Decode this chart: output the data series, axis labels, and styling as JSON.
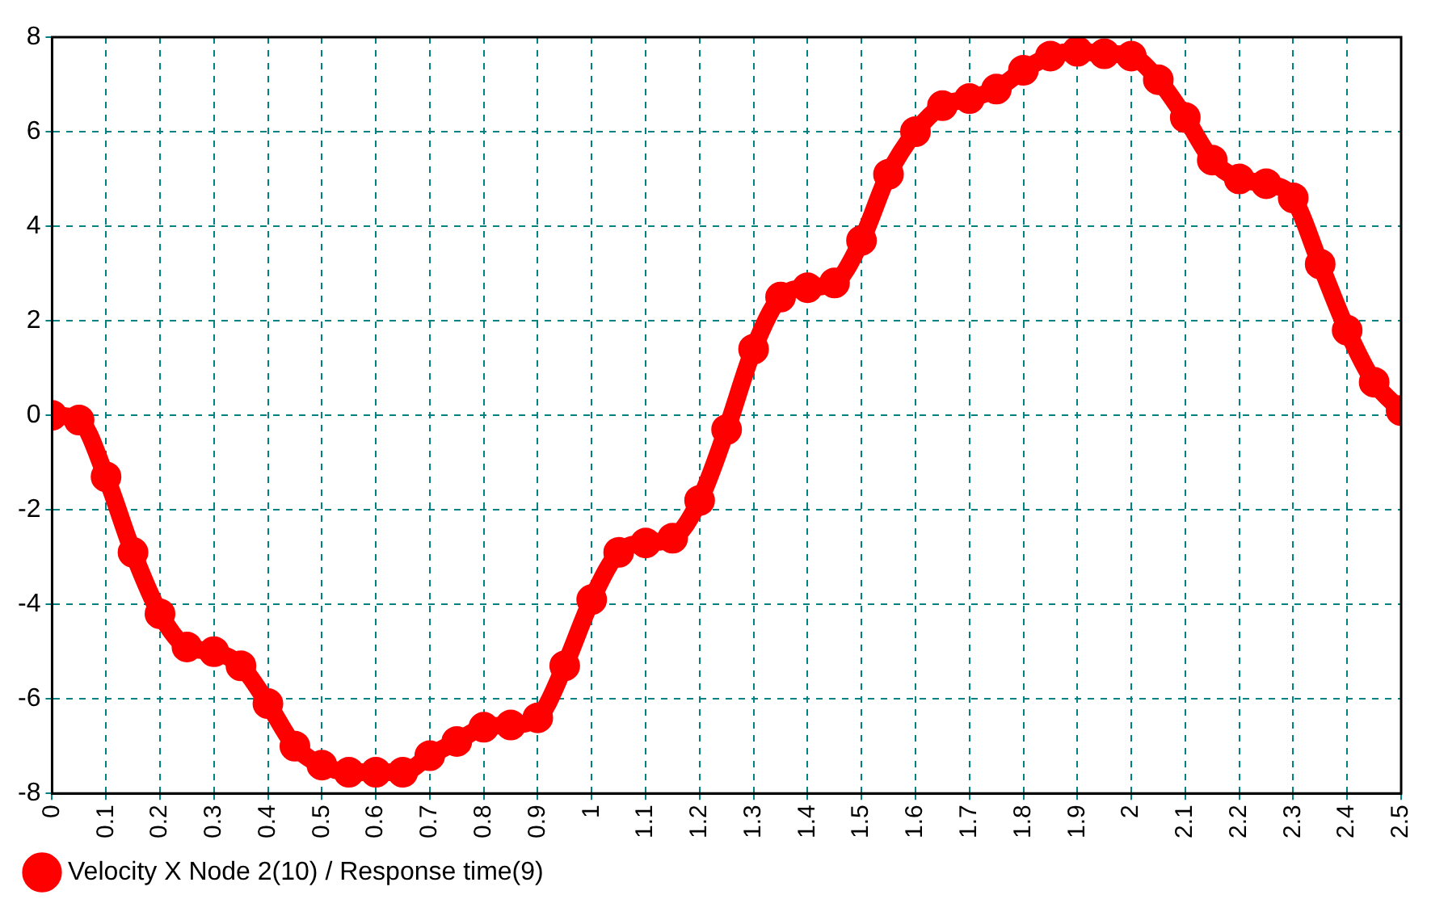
{
  "chart_data": {
    "type": "line",
    "x": [
      0,
      0.05,
      0.1,
      0.15,
      0.2,
      0.25,
      0.3,
      0.35,
      0.4,
      0.45,
      0.5,
      0.55,
      0.6,
      0.65,
      0.7,
      0.75,
      0.8,
      0.85,
      0.9,
      0.95,
      1.0,
      1.05,
      1.1,
      1.15,
      1.2,
      1.25,
      1.3,
      1.35,
      1.4,
      1.45,
      1.5,
      1.55,
      1.6,
      1.65,
      1.7,
      1.75,
      1.8,
      1.85,
      1.9,
      1.95,
      2.0,
      2.05,
      2.1,
      2.15,
      2.2,
      2.25,
      2.3,
      2.35,
      2.4,
      2.45,
      2.5
    ],
    "series": [
      {
        "name": "Velocity X Node 2(10) / Response time(9)",
        "color": "#ff0000",
        "values": [
          0,
          -0.1,
          -1.3,
          -2.9,
          -4.2,
          -4.9,
          -5.0,
          -5.3,
          -6.1,
          -7.0,
          -7.4,
          -7.55,
          -7.55,
          -7.55,
          -7.2,
          -6.9,
          -6.6,
          -6.55,
          -6.4,
          -5.3,
          -3.9,
          -2.9,
          -2.7,
          -2.6,
          -1.8,
          -0.3,
          1.4,
          2.5,
          2.7,
          2.8,
          3.7,
          5.1,
          6.0,
          6.55,
          6.7,
          6.9,
          7.3,
          7.6,
          7.7,
          7.65,
          7.6,
          7.1,
          6.3,
          5.4,
          5.0,
          4.9,
          4.6,
          3.2,
          1.8,
          0.7,
          0.1
        ]
      }
    ],
    "xlim": [
      0,
      2.5
    ],
    "xticks": [
      0,
      0.1,
      0.2,
      0.3,
      0.4,
      0.5,
      0.6,
      0.7,
      0.8,
      0.9,
      1,
      1.1,
      1.2,
      1.3,
      1.4,
      1.5,
      1.6,
      1.7,
      1.8,
      1.9,
      2,
      2.1,
      2.2,
      2.3,
      2.4,
      2.5
    ],
    "ylim": [
      -8,
      8
    ],
    "yticks": [
      -8,
      -6,
      -4,
      -2,
      0,
      2,
      4,
      6,
      8
    ],
    "grid": true,
    "legend": "bottom left",
    "marker": "circle",
    "line_style": "solid"
  }
}
